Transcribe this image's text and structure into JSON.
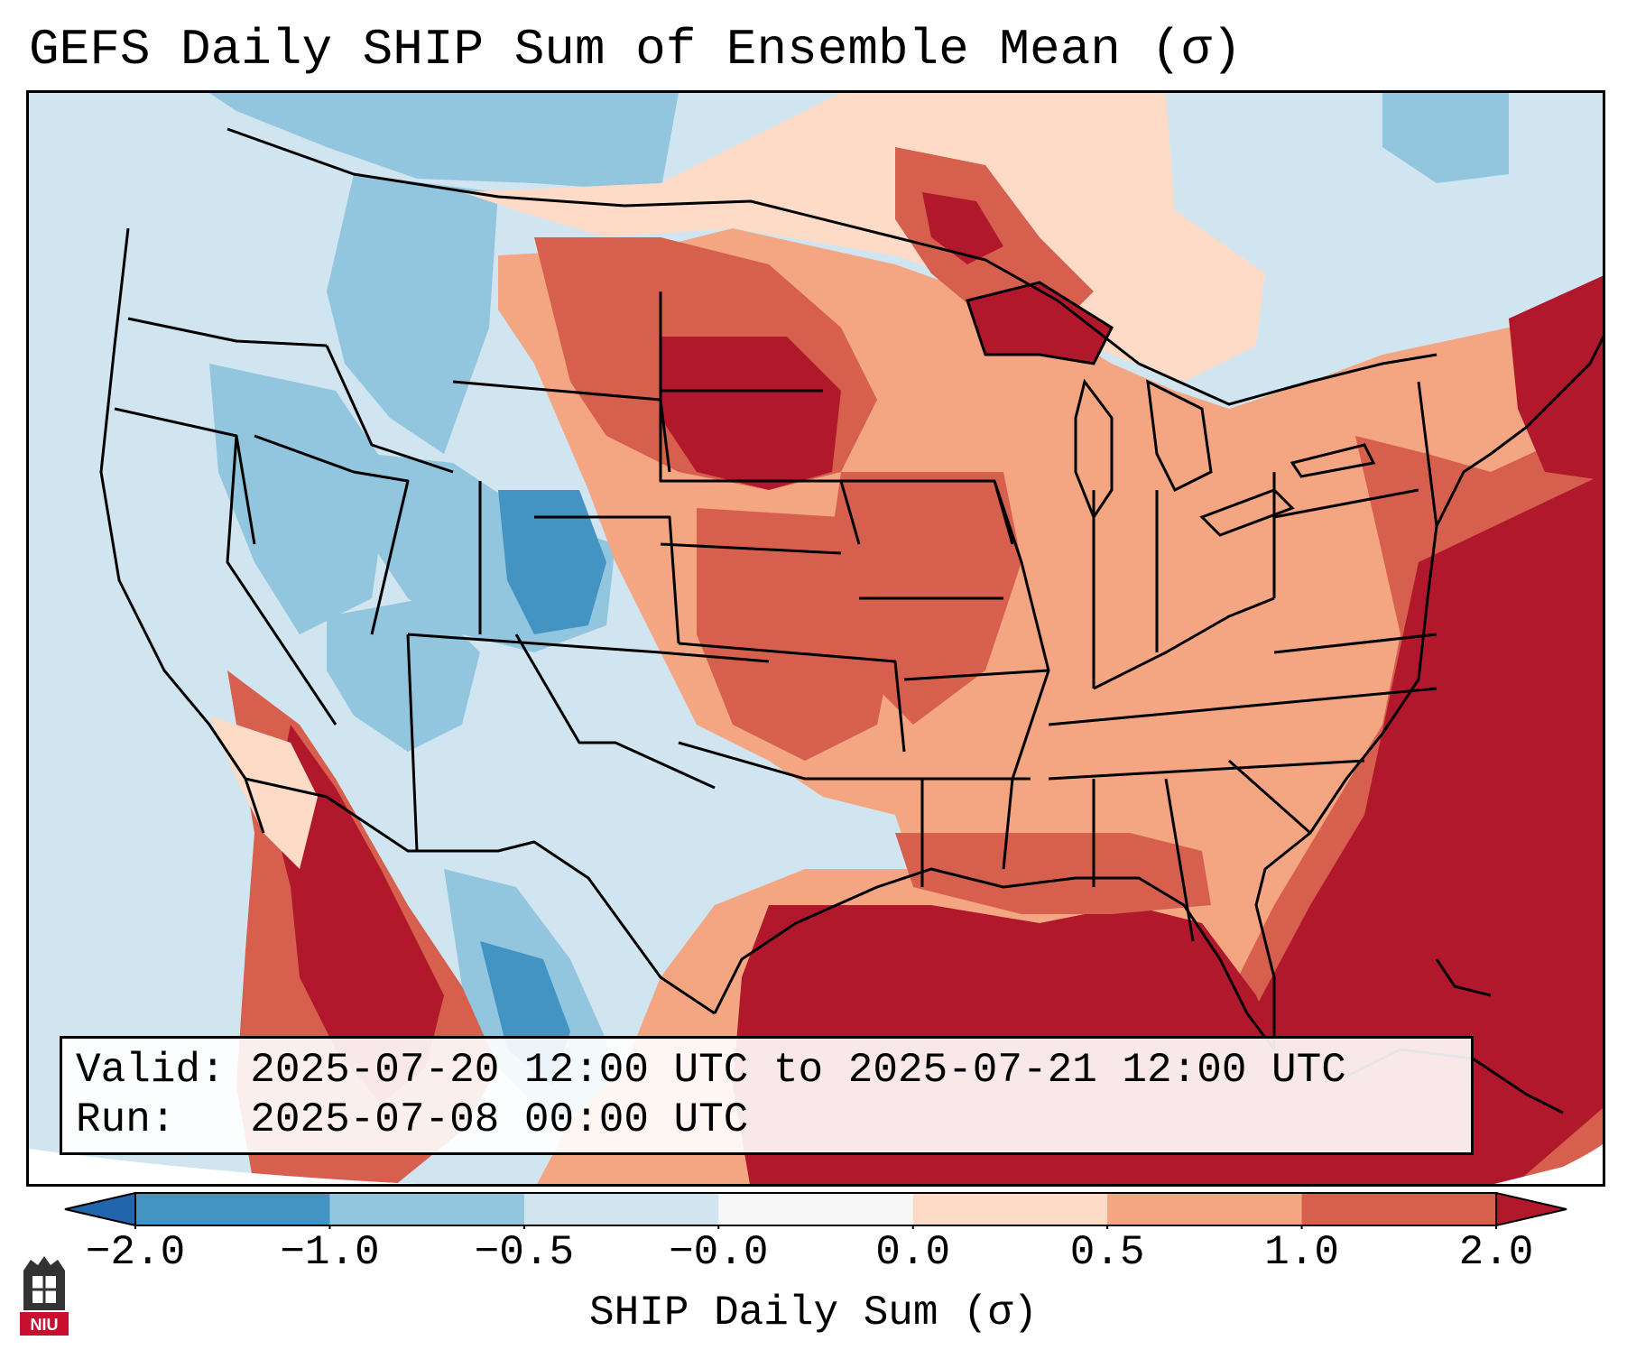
{
  "title": "GEFS Daily SHIP Sum of Ensemble Mean (σ)",
  "info": {
    "valid_label": "Valid:",
    "valid_value": "2025-07-20 12:00 UTC to 2025-07-21 12:00 UTC",
    "run_label": "Run:",
    "run_value": "2025-07-08 00:00 UTC"
  },
  "colorbar": {
    "label": "SHIP Daily Sum (σ)",
    "ticks": [
      "−2.0",
      "−1.0",
      "−0.5",
      "−0.0",
      "0.0",
      "0.5",
      "1.0",
      "2.0"
    ],
    "bins": [
      {
        "color": "#4393c3",
        "range": "-2.0 to -1.0"
      },
      {
        "color": "#92c5de",
        "range": "-1.0 to -0.5"
      },
      {
        "color": "#d1e5f0",
        "range": "-0.5 to -0.0"
      },
      {
        "color": "#f7f7f7",
        "range": "-0.0 to 0.0"
      },
      {
        "color": "#fddbc7",
        "range": "0.0 to 0.5"
      },
      {
        "color": "#f4a582",
        "range": "0.5 to 1.0"
      },
      {
        "color": "#d6604d",
        "range": "1.0 to 2.0"
      }
    ],
    "extend_low_color": "#2166ac",
    "extend_high_color": "#b2182b"
  },
  "logo": {
    "text": "NIU",
    "color": "#c8102e"
  }
}
